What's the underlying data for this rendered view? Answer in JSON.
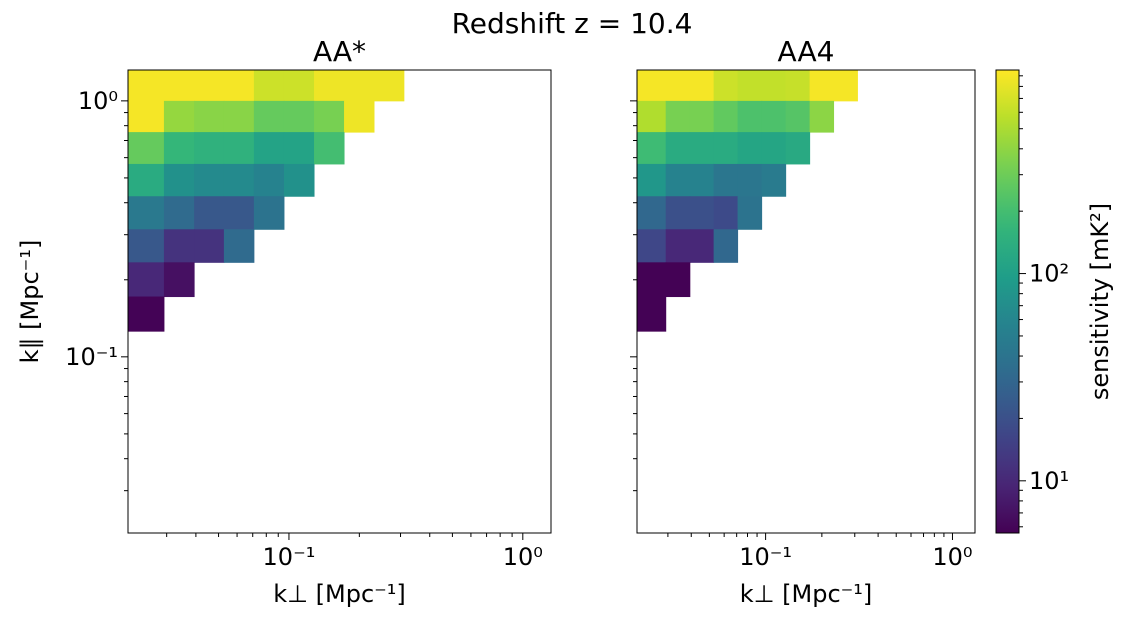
{
  "title": "Redshift z = 10.4",
  "chart_data": [
    {
      "type": "heatmap",
      "title": "AA*",
      "x_label": "k⊥ [Mpc⁻¹]",
      "y_label": "k∥ [Mpc⁻¹]",
      "xscale": "log",
      "yscale": "log",
      "show_ytick_labels": true,
      "xlim": [
        0.0205,
        1.32
      ],
      "ylim": [
        0.0205,
        1.32
      ],
      "xticks": [
        {
          "value": 0.1,
          "label": "10⁻¹"
        },
        {
          "value": 1,
          "label": "10⁰"
        }
      ],
      "yticks": [
        {
          "value": 0.1,
          "label": "10⁻¹"
        },
        {
          "value": 1,
          "label": "10⁰"
        }
      ],
      "xminorticks": [
        0.03,
        0.04,
        0.05,
        0.06,
        0.07,
        0.08,
        0.09,
        0.2,
        0.3,
        0.4,
        0.5,
        0.6,
        0.7,
        0.8,
        0.9
      ],
      "yminorticks": [
        0.03,
        0.04,
        0.05,
        0.06,
        0.07,
        0.08,
        0.09,
        0.2,
        0.3,
        0.4,
        0.5,
        0.6,
        0.7,
        0.8,
        0.9
      ],
      "x_edges": [
        0.0205,
        0.0292,
        0.0393,
        0.0527,
        0.0708,
        0.0952,
        0.128,
        0.172,
        0.231,
        0.31
      ],
      "y_edges": [
        1.32,
        1.0,
        0.755,
        0.567,
        0.424,
        0.315,
        0.234,
        0.172,
        0.126
      ],
      "values": [
        [
          900,
          900,
          900,
          900,
          650,
          650,
          850,
          850,
          850
        ],
        [
          900,
          420,
          380,
          380,
          280,
          280,
          330,
          850,
          null
        ],
        [
          280,
          170,
          150,
          150,
          110,
          110,
          200,
          null,
          null
        ],
        [
          130,
          75,
          65,
          65,
          55,
          75,
          null,
          null,
          null
        ],
        [
          45,
          33,
          23,
          23,
          40,
          null,
          null,
          null,
          null
        ],
        [
          23,
          12,
          12,
          33,
          null,
          null,
          null,
          null,
          null
        ],
        [
          10,
          7,
          null,
          null,
          null,
          null,
          null,
          null,
          null
        ],
        [
          5.8,
          null,
          null,
          null,
          null,
          null,
          null,
          null,
          null
        ]
      ]
    },
    {
      "type": "heatmap",
      "title": "AA4",
      "x_label": "k⊥ [Mpc⁻¹]",
      "xscale": "log",
      "yscale": "log",
      "show_ytick_labels": false,
      "xlim": [
        0.0205,
        1.32
      ],
      "ylim": [
        0.0205,
        1.32
      ],
      "xticks": [
        {
          "value": 0.1,
          "label": "10⁻¹"
        },
        {
          "value": 1,
          "label": "10⁰"
        }
      ],
      "yticks": [
        {
          "value": 0.1,
          "label": "10⁻¹"
        },
        {
          "value": 1,
          "label": "10⁰"
        }
      ],
      "xminorticks": [
        0.03,
        0.04,
        0.05,
        0.06,
        0.07,
        0.08,
        0.09,
        0.2,
        0.3,
        0.4,
        0.5,
        0.6,
        0.7,
        0.8,
        0.9
      ],
      "yminorticks": [
        0.03,
        0.04,
        0.05,
        0.06,
        0.07,
        0.08,
        0.09,
        0.2,
        0.3,
        0.4,
        0.5,
        0.6,
        0.7,
        0.8,
        0.9
      ],
      "x_edges": [
        0.0205,
        0.0292,
        0.0393,
        0.0527,
        0.0708,
        0.0952,
        0.128,
        0.172,
        0.231,
        0.31
      ],
      "y_edges": [
        1.32,
        1.0,
        0.755,
        0.567,
        0.424,
        0.315,
        0.234,
        0.172,
        0.126
      ],
      "values": [
        [
          900,
          900,
          900,
          650,
          600,
          600,
          620,
          900,
          900
        ],
        [
          520,
          330,
          330,
          270,
          220,
          220,
          240,
          390,
          null
        ],
        [
          190,
          130,
          130,
          130,
          115,
          115,
          125,
          null,
          null
        ],
        [
          85,
          55,
          55,
          42,
          42,
          47,
          null,
          null,
          null
        ],
        [
          31,
          20,
          20,
          18,
          40,
          null,
          null,
          null,
          null
        ],
        [
          17,
          10,
          10,
          31,
          null,
          null,
          null,
          null,
          null
        ],
        [
          5.7,
          5.7,
          null,
          null,
          null,
          null,
          null,
          null,
          null
        ],
        [
          5.7,
          null,
          null,
          null,
          null,
          null,
          null,
          null,
          null
        ]
      ]
    }
  ],
  "colorbar": {
    "label": "sensitivity [mK²]",
    "scale": "log",
    "cmap": "viridis",
    "lim": [
      5.6,
      960
    ],
    "ticks": [
      {
        "value": 10,
        "label": "10¹"
      },
      {
        "value": 100,
        "label": "10²"
      }
    ],
    "minorticks": [
      6,
      7,
      8,
      9,
      20,
      30,
      40,
      50,
      60,
      70,
      80,
      90,
      200,
      300,
      400,
      500,
      600,
      700,
      800,
      900
    ]
  }
}
